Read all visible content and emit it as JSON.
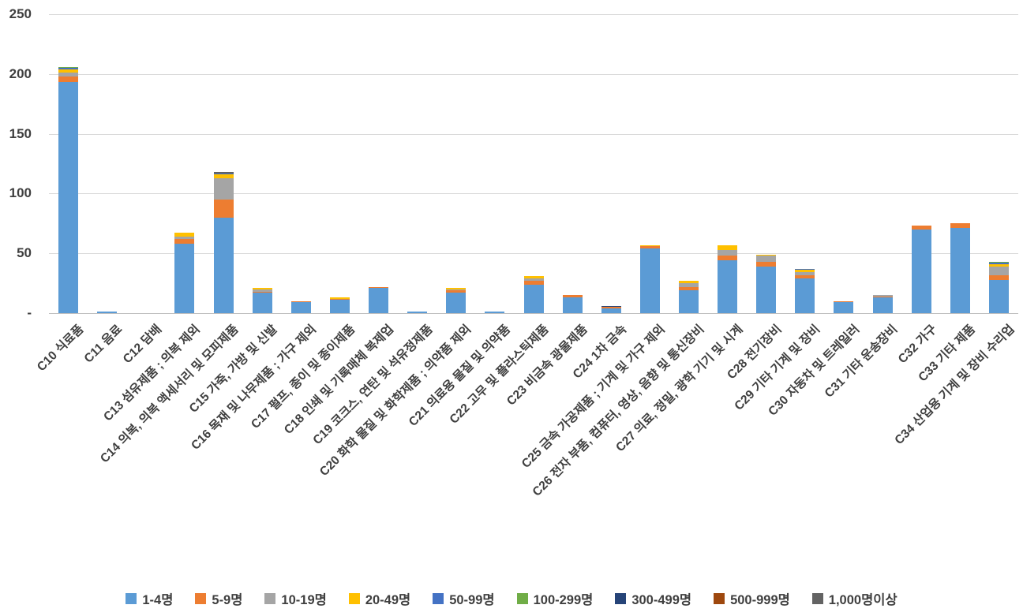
{
  "chart_data": {
    "type": "bar",
    "stacked": true,
    "title": "",
    "xlabel": "",
    "ylabel": "",
    "ylim": [
      0,
      250
    ],
    "yticks": [
      0,
      50,
      100,
      150,
      200,
      250
    ],
    "ytick_labels": [
      "-",
      "50",
      "100",
      "150",
      "200",
      "250"
    ],
    "grid": true,
    "legend_position": "bottom",
    "categories": [
      "C10 식료품",
      "C11 음료",
      "C12 담배",
      "C13 섬유제품 ; 의복 제외",
      "C14 의복, 의복 액세서리 및 모피제품",
      "C15 가죽, 가방 및 신발",
      "C16 목재 및 나무제품 ; 가구 제외",
      "C17 펄프, 종이 및 종이제품",
      "C18 인쇄 및 기록매체 복제업",
      "C19 코크스, 연탄 및 석유정제품",
      "C20 화학 물질 및 화학제품 ; 의약품 제외",
      "C21 의료용 물질 및 의약품",
      "C22 고무 및 플라스틱제품",
      "C23 비금속 광물제품",
      "C24 1차 금속",
      "C25 금속 가공제품 ; 기계 및 가구 제외",
      "C26 전자 부품, 컴퓨터, 영상, 음향 및 통신장비",
      "C27 의료, 정밀, 광학 기기 및 시계",
      "C28 전기장비",
      "C29 기타 기계 및 장비",
      "C30 자동차 및 트레일러",
      "C31 기타 운송장비",
      "C32 가구",
      "C33 기타 제품",
      "C34 산업용 기계 및 장비 수리업"
    ],
    "series": [
      {
        "name": "1-4명",
        "color": "#5B9BD5",
        "values": [
          193,
          1,
          0,
          58,
          80,
          17,
          9,
          11,
          21,
          1,
          17,
          1,
          24,
          13,
          4,
          54,
          19,
          44,
          39,
          29,
          9,
          13,
          70,
          71,
          28
        ]
      },
      {
        "name": "5-9명",
        "color": "#ED7D31",
        "values": [
          5,
          0,
          0,
          4,
          15,
          1,
          1,
          1,
          1,
          0,
          2,
          0,
          3,
          2,
          1,
          2,
          3,
          4,
          4,
          3,
          1,
          1,
          3,
          4,
          4
        ]
      },
      {
        "name": "10-19명",
        "color": "#A5A5A5",
        "values": [
          3,
          0,
          0,
          2,
          18,
          2,
          0,
          0,
          0,
          0,
          1,
          0,
          2,
          0,
          0,
          0,
          3,
          5,
          5,
          2,
          0,
          1,
          0,
          0,
          7
        ]
      },
      {
        "name": "20-49명",
        "color": "#FFC000",
        "values": [
          3,
          0,
          0,
          3,
          3,
          1,
          0,
          1,
          0,
          0,
          1,
          0,
          2,
          0,
          0,
          1,
          2,
          4,
          1,
          2,
          0,
          0,
          0,
          0,
          2
        ]
      },
      {
        "name": "50-99명",
        "color": "#4472C4",
        "values": [
          1,
          0,
          0,
          0,
          1,
          0,
          0,
          0,
          0,
          0,
          0,
          0,
          0,
          0,
          0,
          0,
          0,
          0,
          0,
          1,
          0,
          0,
          0,
          0,
          1
        ]
      },
      {
        "name": "100-299명",
        "color": "#70AD47",
        "values": [
          1,
          0,
          0,
          0,
          0,
          0,
          0,
          0,
          0,
          0,
          0,
          0,
          0,
          0,
          0,
          0,
          0,
          0,
          0,
          0,
          0,
          0,
          0,
          0,
          1
        ]
      },
      {
        "name": "300-499명",
        "color": "#264478",
        "values": [
          0,
          0,
          0,
          0,
          0,
          0,
          0,
          0,
          0,
          0,
          0,
          0,
          0,
          0,
          1,
          0,
          0,
          0,
          0,
          0,
          0,
          0,
          0,
          0,
          0
        ]
      },
      {
        "name": "500-999명",
        "color": "#9E480E",
        "values": [
          0,
          0,
          0,
          0,
          0,
          0,
          0,
          0,
          0,
          0,
          0,
          0,
          0,
          0,
          0,
          0,
          0,
          0,
          0,
          0,
          0,
          0,
          0,
          0,
          0
        ]
      },
      {
        "name": "1,000명이상",
        "color": "#636363",
        "values": [
          0,
          0,
          0,
          0,
          1,
          0,
          0,
          0,
          0,
          0,
          0,
          0,
          0,
          0,
          0,
          0,
          0,
          0,
          0,
          0,
          0,
          0,
          0,
          0,
          0
        ]
      }
    ]
  }
}
